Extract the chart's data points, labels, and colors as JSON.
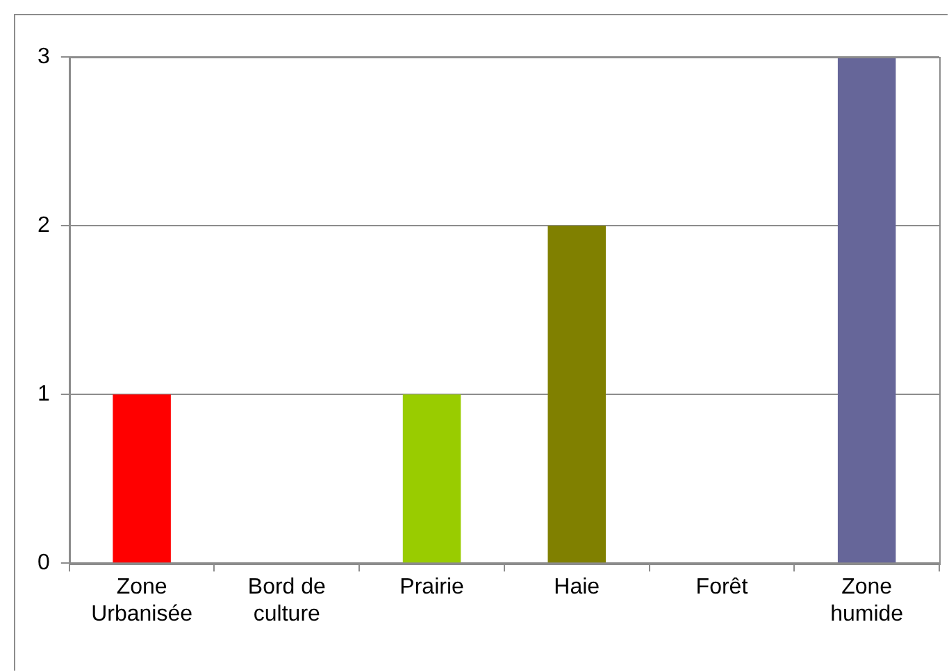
{
  "chart_data": {
    "type": "bar",
    "categories": [
      "Zone Urbanisée",
      "Bord de culture",
      "Prairie",
      "Haie",
      "Forêt",
      "Zone humide"
    ],
    "values": [
      1,
      0,
      1,
      2,
      0,
      3
    ],
    "colors": [
      "#ff0000",
      null,
      "#99cc00",
      "#808000",
      null,
      "#666699"
    ],
    "ylim": [
      0,
      3
    ],
    "yticks": [
      0,
      1,
      2,
      3
    ],
    "grid": "y",
    "legend": false
  }
}
